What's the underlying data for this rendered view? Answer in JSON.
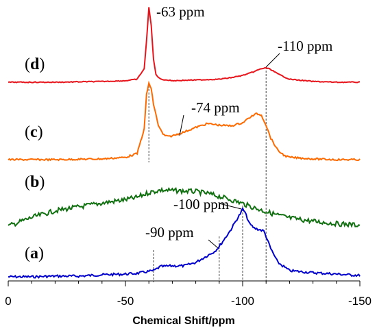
{
  "chart_data": {
    "type": "line",
    "xlabel": "Chemical Shift/ppm",
    "xlim": [
      0,
      -150
    ],
    "x_ticks": [
      0,
      -50,
      -100,
      -150
    ],
    "x_tick_labels": [
      "0",
      "-50",
      "-100",
      "-150"
    ],
    "y_axis_shown": false,
    "grid": false,
    "series": [
      {
        "name": "(a)",
        "color": "#0000cc",
        "x": [
          0,
          -10,
          -20,
          -30,
          -40,
          -50,
          -55,
          -60,
          -62,
          -65,
          -70,
          -75,
          -80,
          -85,
          -88,
          -90,
          -93,
          -95,
          -97,
          -99,
          -100,
          -101,
          -103,
          -105,
          -107,
          -109,
          -110,
          -112,
          -115,
          -120,
          -130,
          -140,
          -150
        ],
        "y": [
          0.01,
          0.01,
          0.02,
          0.02,
          0.04,
          0.05,
          0.06,
          0.09,
          0.1,
          0.16,
          0.17,
          0.17,
          0.22,
          0.32,
          0.38,
          0.45,
          0.6,
          0.7,
          0.82,
          0.93,
          1.0,
          0.95,
          0.78,
          0.72,
          0.7,
          0.68,
          0.6,
          0.42,
          0.22,
          0.1,
          0.07,
          0.05,
          0.03
        ]
      },
      {
        "name": "(b)",
        "color": "#107010",
        "x": [
          0,
          -10,
          -20,
          -30,
          -40,
          -50,
          -55,
          -60,
          -65,
          -70,
          -75,
          -80,
          -85,
          -90,
          -95,
          -100,
          -105,
          -110,
          -115,
          -120,
          -130,
          -140,
          -150
        ],
        "y": [
          0.0,
          0.18,
          0.32,
          0.4,
          0.48,
          0.55,
          0.6,
          0.7,
          0.75,
          0.74,
          0.73,
          0.72,
          0.68,
          0.62,
          0.55,
          0.47,
          0.38,
          0.3,
          0.23,
          0.17,
          0.1,
          0.05,
          0.02
        ]
      },
      {
        "name": "(c)",
        "color": "#ff6a00",
        "x": [
          0,
          -20,
          -40,
          -50,
          -55,
          -58,
          -59,
          -60,
          -61,
          -62,
          -64,
          -66,
          -68,
          -70,
          -72,
          -75,
          -80,
          -85,
          -90,
          -95,
          -100,
          -103,
          -106,
          -108,
          -110,
          -112,
          -115,
          -118,
          -120,
          -130,
          -140,
          -150
        ],
        "y": [
          0.0,
          0.0,
          0.01,
          0.03,
          0.08,
          0.4,
          0.85,
          1.0,
          0.92,
          0.72,
          0.45,
          0.33,
          0.3,
          0.31,
          0.33,
          0.36,
          0.42,
          0.47,
          0.45,
          0.44,
          0.48,
          0.55,
          0.6,
          0.58,
          0.45,
          0.28,
          0.12,
          0.05,
          0.03,
          0.01,
          0.0,
          0.0
        ]
      },
      {
        "name": "(d)",
        "color": "#e8141b",
        "x": [
          0,
          -20,
          -40,
          -50,
          -55,
          -58,
          -59,
          -60,
          -61,
          -62,
          -63,
          -65,
          -70,
          -80,
          -90,
          -95,
          -100,
          -104,
          -108,
          -110,
          -112,
          -115,
          -120,
          -130,
          -140,
          -150
        ],
        "y": [
          0.0,
          0.0,
          0.01,
          0.02,
          0.04,
          0.18,
          0.55,
          1.0,
          0.75,
          0.3,
          0.1,
          0.04,
          0.02,
          0.03,
          0.04,
          0.06,
          0.09,
          0.13,
          0.18,
          0.19,
          0.17,
          0.11,
          0.04,
          0.01,
          0.0,
          0.0
        ]
      }
    ],
    "annotations": [
      {
        "text": "-63 ppm",
        "x": -63
      },
      {
        "text": "-110 ppm",
        "x": -110
      },
      {
        "text": "-74 ppm",
        "x": -74
      },
      {
        "text": "-100 ppm",
        "x": -100
      },
      {
        "text": "-90 ppm",
        "x": -90
      }
    ],
    "reference_lines": [
      -60,
      -62,
      -90,
      -100,
      -110
    ]
  },
  "labels": {
    "a": {
      "paren_open": "(",
      "letter": "a",
      "paren_close": ")"
    },
    "b": {
      "paren_open": "(",
      "letter": "b",
      "paren_close": ")"
    },
    "c": {
      "paren_open": "(",
      "letter": "c",
      "paren_close": ")"
    },
    "d": {
      "paren_open": "(",
      "letter": "d",
      "paren_close": ")"
    }
  }
}
